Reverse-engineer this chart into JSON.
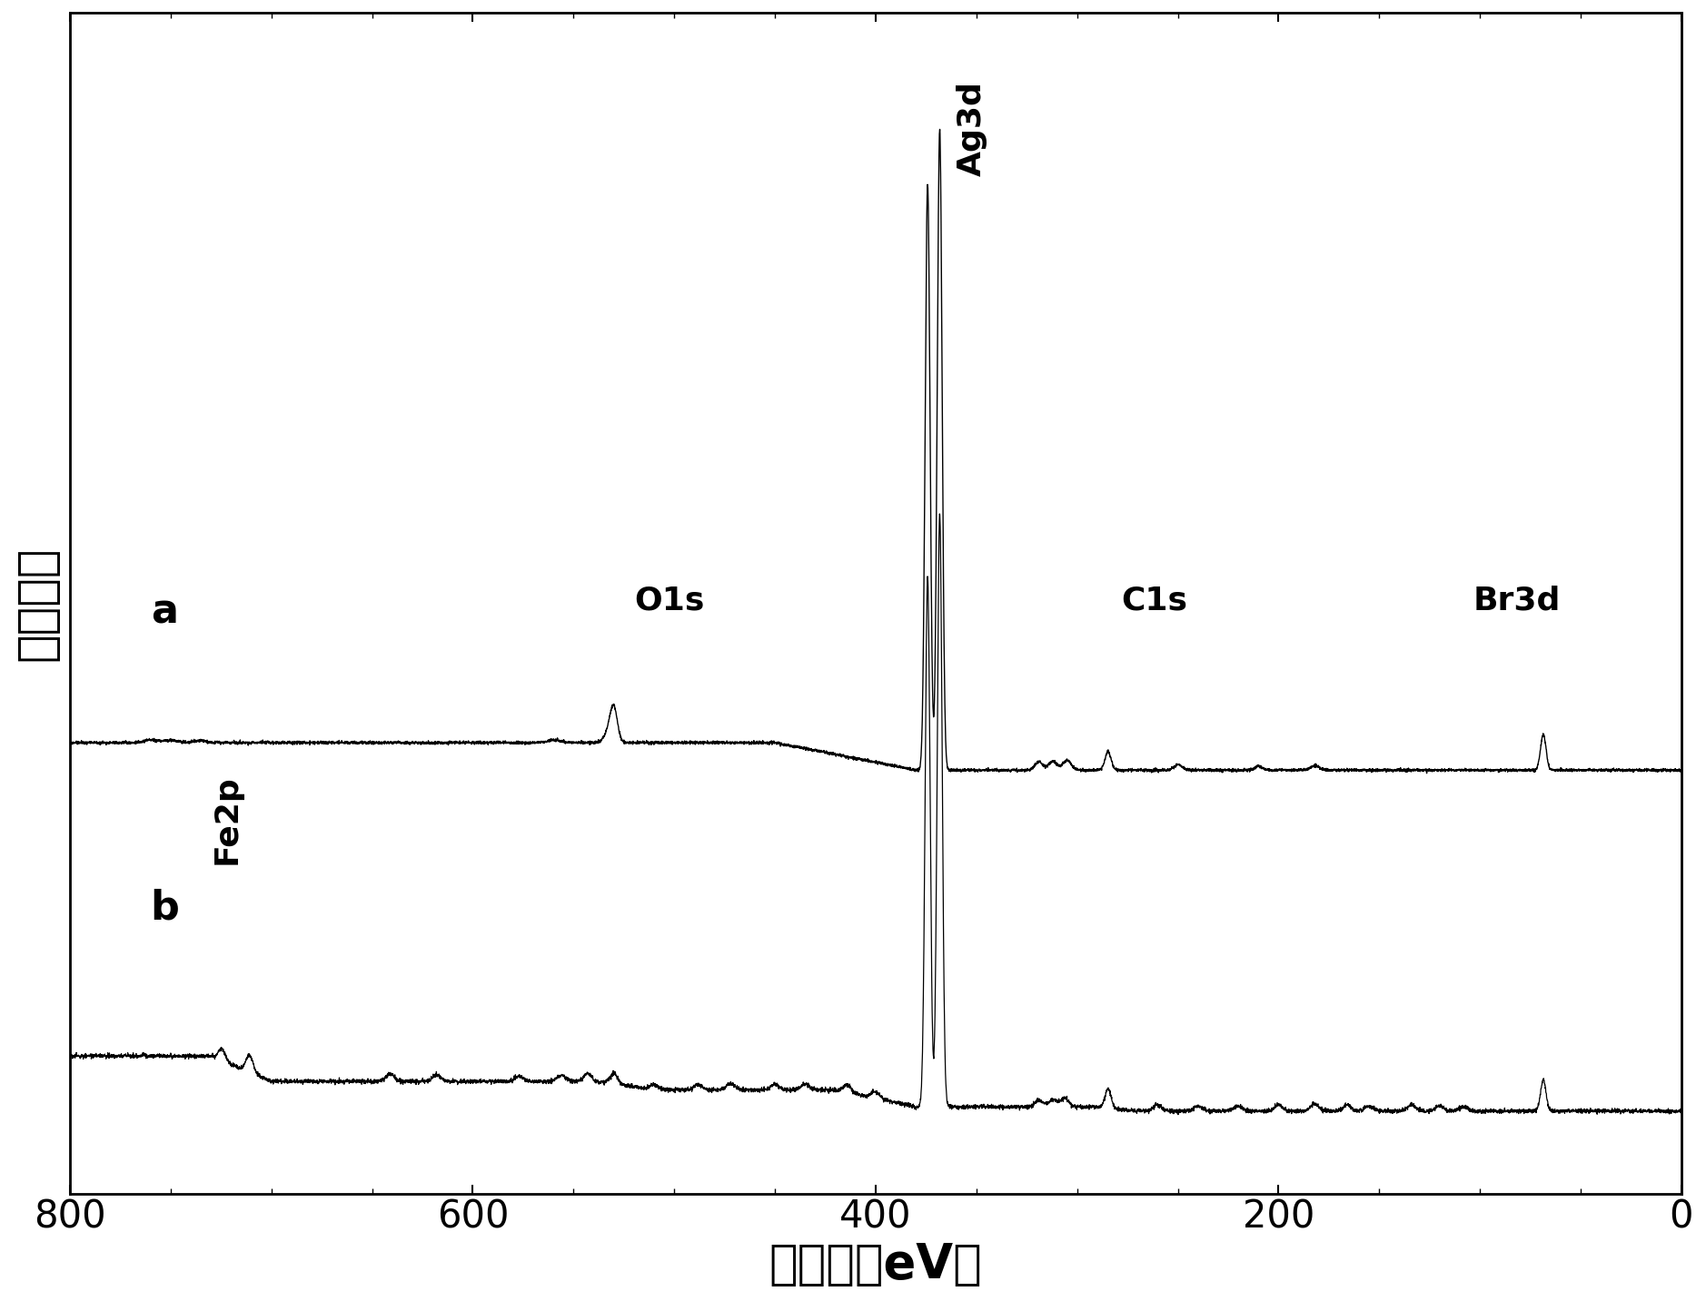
{
  "xlabel": "结合能（eV）",
  "ylabel": "相对强度",
  "xlabel_fontsize": 38,
  "ylabel_fontsize": 38,
  "tick_fontsize": 30,
  "annotation_fontsize": 26,
  "label_fontsize": 32,
  "xlim_left": 800,
  "xlim_right": 0,
  "xticks": [
    800,
    600,
    400,
    200,
    0
  ],
  "background_color": "#ffffff",
  "line_color_a": "#000000",
  "line_color_b": "#000000",
  "label_a": "a",
  "label_b": "b"
}
